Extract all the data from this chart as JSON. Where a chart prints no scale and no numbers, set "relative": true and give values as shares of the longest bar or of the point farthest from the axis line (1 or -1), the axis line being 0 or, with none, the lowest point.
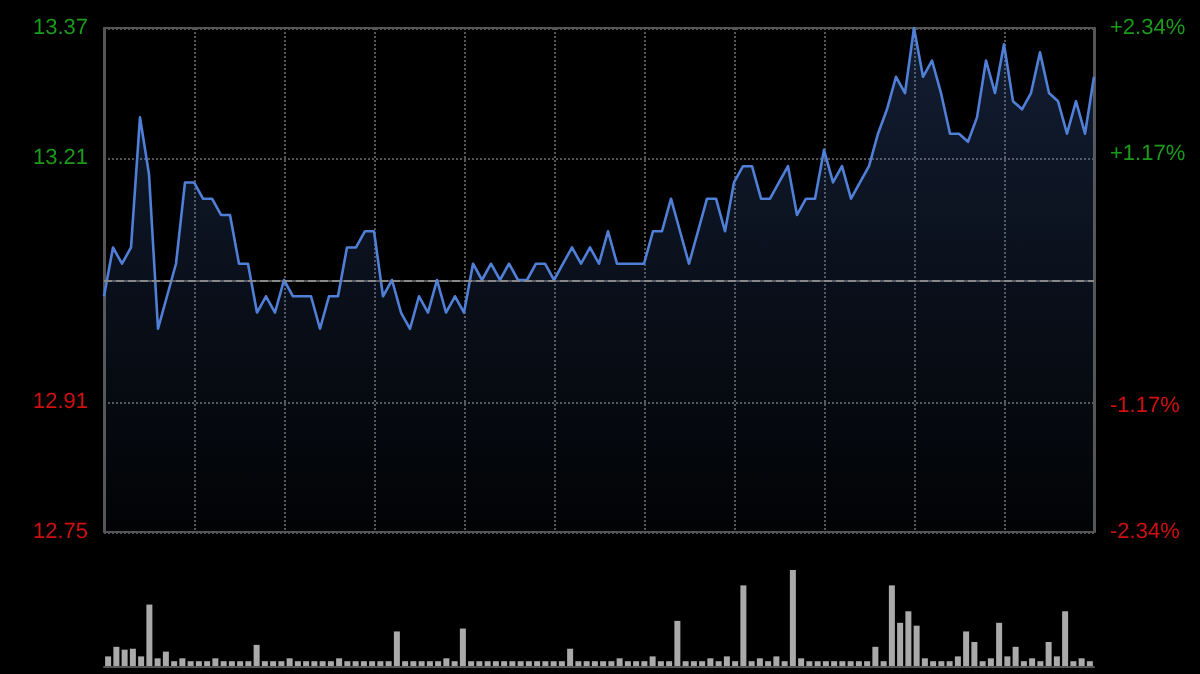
{
  "chart_data": [
    {
      "type": "area",
      "categories": [
        null,
        null,
        null,
        null,
        null,
        null,
        null,
        null,
        null,
        null,
        null,
        null,
        null,
        null,
        null,
        null,
        null,
        null,
        null,
        null,
        null,
        null,
        null,
        null,
        null,
        null,
        null,
        null,
        null,
        null,
        null,
        null,
        null,
        null,
        null,
        null,
        null,
        null,
        null,
        null,
        null,
        null,
        null,
        null,
        null,
        null,
        null,
        null,
        null,
        null,
        null,
        null,
        null,
        null,
        null,
        null,
        null,
        null,
        null,
        null,
        null,
        null,
        null,
        null,
        null,
        null,
        null,
        null,
        null,
        null,
        null,
        null,
        null,
        null,
        null,
        null,
        null,
        null,
        null,
        null,
        null,
        null,
        null,
        null,
        null,
        null,
        null,
        null,
        null,
        null,
        null,
        null,
        null,
        null,
        null,
        null,
        null,
        null,
        null,
        null,
        null,
        null,
        null,
        null,
        null,
        null,
        null,
        null,
        null,
        null,
        null
      ],
      "ylim": [
        12.75,
        13.37
      ],
      "yticks": [
        12.75,
        12.91,
        13.21,
        13.37
      ],
      "y2lim": [
        -2.34,
        2.34
      ],
      "y2ticks": [
        {
          "value": -2.34,
          "label": "-2.34%"
        },
        {
          "value": -1.17,
          "label": "-1.17%"
        },
        {
          "value": 1.17,
          "label": "+1.17%"
        },
        {
          "value": 2.34,
          "label": "+2.34%"
        }
      ],
      "grid": true,
      "tick_labels": "y",
      "ref_lines": [
        {
          "axis": "y",
          "value": 13.06,
          "label": null,
          "color": "#888888",
          "line_style": "dashed"
        }
      ],
      "series": [
        {
          "color": "#4f7fd6",
          "values": [
            13.04,
            13.1,
            13.08,
            13.1,
            13.26,
            13.19,
            13,
            13.04,
            13.08,
            13.18,
            13.18,
            13.16,
            13.16,
            13.14,
            13.14,
            13.08,
            13.08,
            13.02,
            13.04,
            13.02,
            13.06,
            13.04,
            13.04,
            13.04,
            13,
            13.04,
            13.04,
            13.1,
            13.1,
            13.12,
            13.12,
            13.04,
            13.06,
            13.02,
            13,
            13.04,
            13.02,
            13.06,
            13.02,
            13.04,
            13.02,
            13.08,
            13.06,
            13.08,
            13.06,
            13.08,
            13.06,
            13.06,
            13.08,
            13.08,
            13.06,
            13.08,
            13.1,
            13.08,
            13.1,
            13.08,
            13.12,
            13.08,
            13.08,
            13.08,
            13.08,
            13.12,
            13.12,
            13.16,
            13.12,
            13.08,
            13.12,
            13.16,
            13.16,
            13.12,
            13.18,
            13.2,
            13.2,
            13.16,
            13.16,
            13.18,
            13.2,
            13.14,
            13.16,
            13.16,
            13.22,
            13.18,
            13.2,
            13.16,
            13.18,
            13.2,
            13.24,
            13.27,
            13.31,
            13.29,
            13.37,
            13.31,
            13.33,
            13.29,
            13.24,
            13.24,
            13.23,
            13.26,
            13.33,
            13.29,
            13.35,
            13.28,
            13.27,
            13.29,
            13.34,
            13.29,
            13.28,
            13.24,
            13.28,
            13.24,
            13.31
          ]
        }
      ]
    },
    {
      "type": "bar",
      "relative": true,
      "color": "#aaaaaa",
      "categories": [
        null,
        null,
        null,
        null,
        null,
        null,
        null,
        null,
        null,
        null,
        null,
        null,
        null,
        null,
        null,
        null,
        null,
        null,
        null,
        null,
        null,
        null,
        null,
        null,
        null,
        null,
        null,
        null,
        null,
        null,
        null,
        null,
        null,
        null,
        null,
        null,
        null,
        null,
        null,
        null,
        null,
        null,
        null,
        null,
        null,
        null,
        null,
        null,
        null,
        null,
        null,
        null,
        null,
        null,
        null,
        null,
        null,
        null,
        null,
        null,
        null,
        null,
        null,
        null,
        null,
        null,
        null,
        null,
        null,
        null,
        null,
        null,
        null,
        null,
        null,
        null,
        null,
        null,
        null,
        null,
        null,
        null,
        null,
        null,
        null,
        null,
        null,
        null,
        null,
        null,
        null,
        null,
        null,
        null,
        null,
        null,
        null,
        null,
        null,
        null,
        null,
        null,
        null,
        null,
        null,
        null,
        null,
        null,
        null,
        null,
        null,
        null,
        null,
        null,
        null,
        null,
        null,
        null,
        null,
        null
      ],
      "values": [
        0.1,
        0.2,
        0.17,
        0.18,
        0.1,
        0.64,
        0.08,
        0.15,
        0.05,
        0.08,
        0.05,
        0.05,
        0.05,
        0.08,
        0.05,
        0.05,
        0.05,
        0.05,
        0.22,
        0.05,
        0.05,
        0.05,
        0.08,
        0.05,
        0.05,
        0.05,
        0.05,
        0.05,
        0.08,
        0.05,
        0.05,
        0.05,
        0.05,
        0.05,
        0.05,
        0.36,
        0.05,
        0.05,
        0.05,
        0.05,
        0.05,
        0.08,
        0.05,
        0.39,
        0.05,
        0.05,
        0.05,
        0.05,
        0.05,
        0.05,
        0.05,
        0.05,
        0.05,
        0.05,
        0.05,
        0.05,
        0.18,
        0.05,
        0.05,
        0.05,
        0.05,
        0.05,
        0.08,
        0.05,
        0.05,
        0.05,
        0.1,
        0.05,
        0.05,
        0.47,
        0.05,
        0.05,
        0.05,
        0.08,
        0.05,
        0.1,
        0.05,
        0.84,
        0.05,
        0.08,
        0.05,
        0.1,
        0.05,
        1,
        0.08,
        0.05,
        0.05,
        0.05,
        0.05,
        0.05,
        0.05,
        0.05,
        0.05,
        0.2,
        0.05,
        0.84,
        0.45,
        0.57,
        0.42,
        0.08,
        0.05,
        0.05,
        0.05,
        0.1,
        0.36,
        0.25,
        0.05,
        0.08,
        0.45,
        0.1,
        0.2,
        0.05,
        0.08,
        0.05,
        0.25,
        0.1,
        0.57,
        0.05,
        0.08,
        0.05
      ]
    }
  ]
}
